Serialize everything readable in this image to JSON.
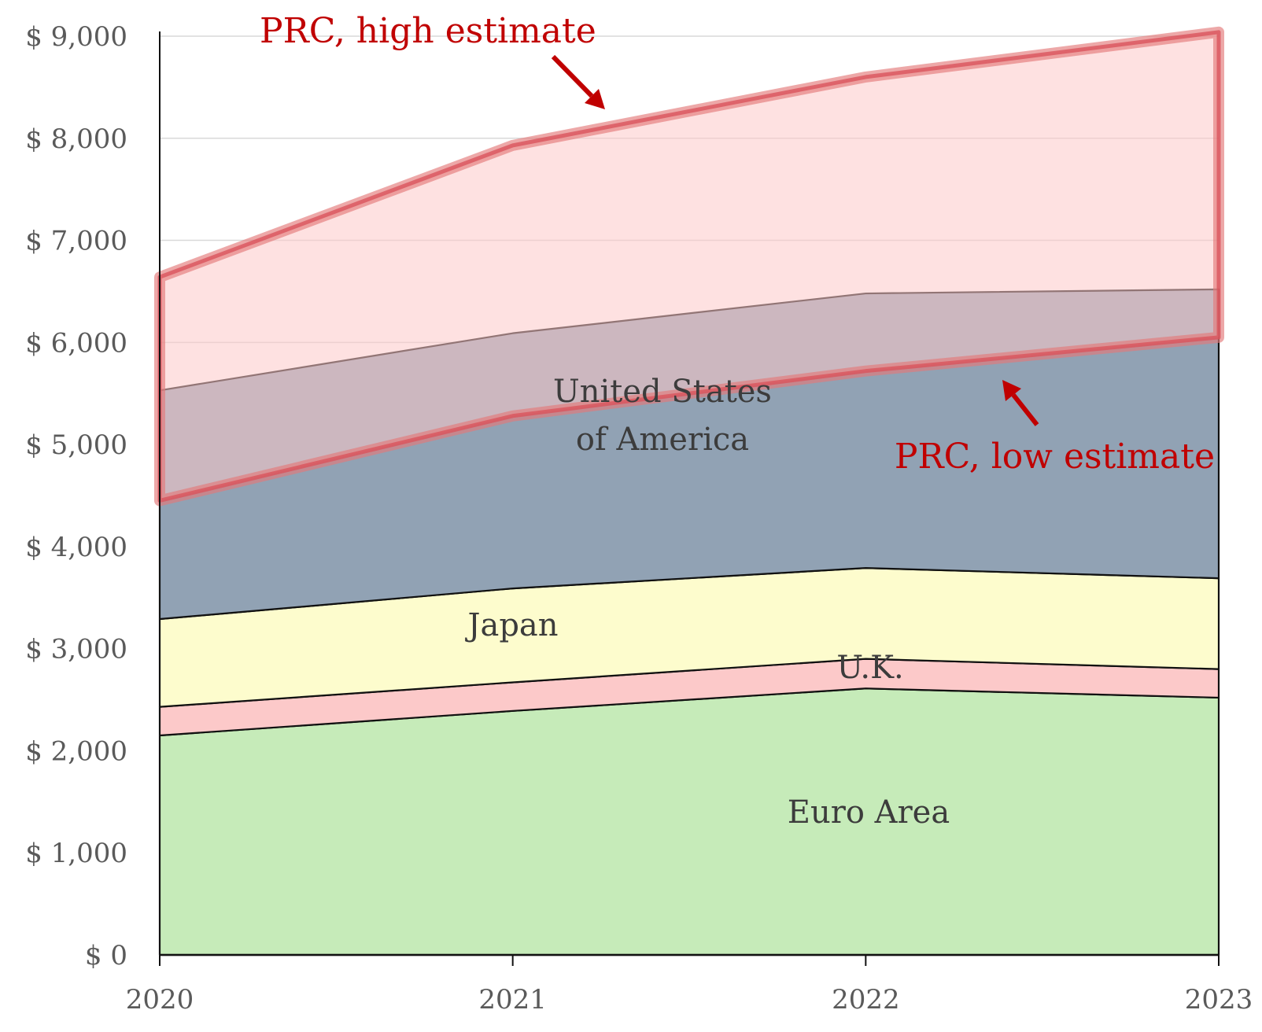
{
  "chart_data": {
    "type": "area",
    "stacked": true,
    "x": [
      "2020",
      "2021",
      "2022",
      "2023"
    ],
    "ylim": [
      0,
      9000
    ],
    "yticks": [
      0,
      1000,
      2000,
      3000,
      4000,
      5000,
      6000,
      7000,
      8000,
      9000
    ],
    "ytick_labels": [
      "$ 0",
      "$ 1,000",
      "$ 2,000",
      "$ 3,000",
      "$ 4,000",
      "$ 5,000",
      "$ 6,000",
      "$ 7,000",
      "$ 8,000",
      "$ 9,000"
    ],
    "grid": true,
    "series": [
      {
        "key": "euro",
        "name": "Euro Area",
        "values": [
          2150,
          2390,
          2610,
          2520
        ],
        "color": "#c6ebb9"
      },
      {
        "key": "uk",
        "name": "U.K.",
        "values": [
          280,
          280,
          290,
          280
        ],
        "color": "#fcc9c9"
      },
      {
        "key": "japan",
        "name": "Japan",
        "values": [
          860,
          920,
          890,
          890
        ],
        "color": "#fdfccd"
      },
      {
        "key": "usa",
        "name": "United States of America",
        "name_lines": [
          "United States",
          "of America"
        ],
        "values": [
          2240,
          2500,
          2690,
          2830
        ],
        "color": "#91a2b4"
      }
    ],
    "prc_band": {
      "low": {
        "name": "PRC, low estimate",
        "values": [
          4450,
          5280,
          5720,
          6050
        ]
      },
      "high": {
        "name": "PRC, high estimate",
        "values": [
          6640,
          7930,
          8600,
          9040
        ]
      },
      "fill_color": "#fdc9c9",
      "line_color": "#e47a7a"
    },
    "label_color": "#3c3c3c",
    "prc_label_color": "#c00000",
    "grid_color": "#d9d9d9"
  }
}
